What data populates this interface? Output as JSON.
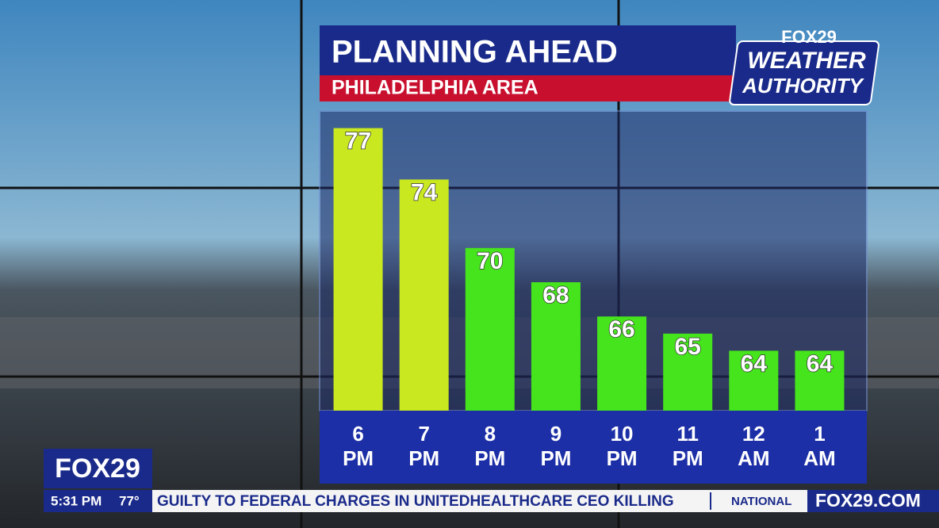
{
  "header": {
    "title": "PLANNING AHEAD",
    "subtitle": "PHILADELPHIA AREA"
  },
  "logo": {
    "brand": "FOX29",
    "line1": "WEATHER",
    "line2": "AUTHORITY"
  },
  "chart_data": {
    "type": "bar",
    "categories": [
      "6 PM",
      "7 PM",
      "8 PM",
      "9 PM",
      "10 PM",
      "11 PM",
      "12 AM",
      "1 AM"
    ],
    "values": [
      77,
      74,
      70,
      68,
      66,
      65,
      64,
      64
    ],
    "colors": [
      "#c9e81f",
      "#c9e81f",
      "#46e41c",
      "#46e41c",
      "#46e41c",
      "#46e41c",
      "#46e41c",
      "#46e41c"
    ],
    "ylim": [
      60.5,
      78
    ]
  },
  "ticker": {
    "brand": "FOX29",
    "time": "5:31 PM",
    "temperature": "77°",
    "headline": "GUILTY TO FEDERAL CHARGES IN UNITEDHEALTHCARE CEO KILLING",
    "section": "NATIONAL",
    "website": "FOX29.COM"
  }
}
